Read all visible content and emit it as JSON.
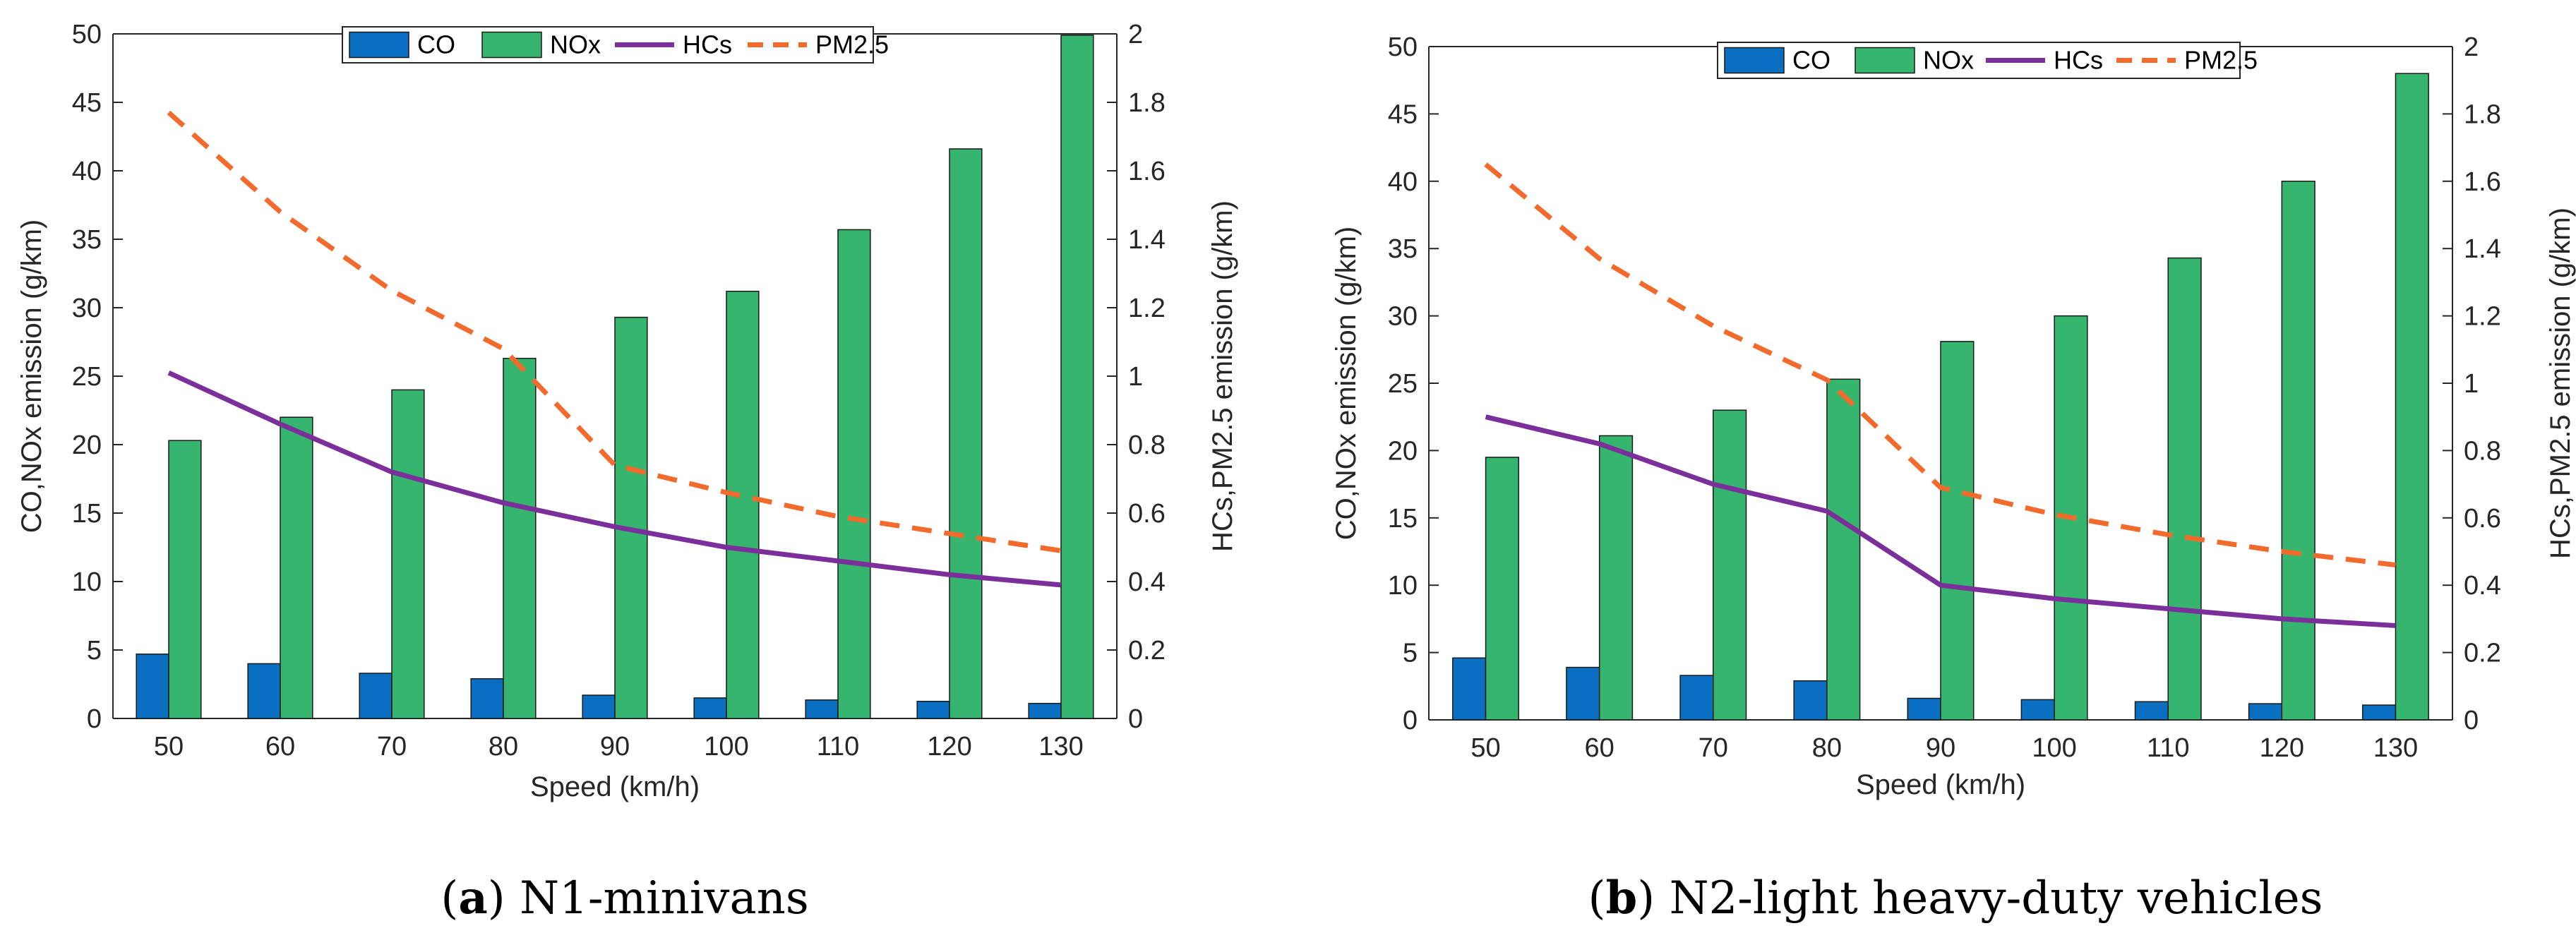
{
  "colors": {
    "CO": "#0b6fc1",
    "NOx": "#35b56e",
    "HCs": "#7b2f9a",
    "PM25": "#f26a2c",
    "axis": "#262626"
  },
  "chart_data": [
    {
      "type": "bar+line",
      "id": "a",
      "categories": [
        50,
        60,
        70,
        80,
        90,
        100,
        110,
        120,
        130
      ],
      "xlabel": "Speed (km/h)",
      "ylabel_left": "CO,NOx emission (g/km)",
      "ylabel_right": "HCs,PM2.5 emission (g/km)",
      "ylim_left": [
        0,
        50
      ],
      "ylim_right": [
        0,
        2
      ],
      "left_ticks": [
        "0",
        "5",
        "10",
        "15",
        "20",
        "25",
        "30",
        "35",
        "40",
        "45",
        "50"
      ],
      "right_ticks": [
        "0",
        "0.2",
        "0.4",
        "0.6",
        "0.8",
        "1",
        "1.2",
        "1.4",
        "1.6",
        "1.8",
        "2"
      ],
      "legend": [
        "CO",
        "NOx",
        "HCs",
        "PM2.5"
      ],
      "legend_position": "top-center",
      "series": [
        {
          "name": "CO",
          "kind": "bar",
          "axis": "left",
          "values": [
            4.7,
            4.0,
            3.3,
            2.9,
            1.7,
            1.5,
            1.35,
            1.25,
            1.1
          ]
        },
        {
          "name": "NOx",
          "kind": "bar",
          "axis": "left",
          "values": [
            20.3,
            22.0,
            24.0,
            26.3,
            29.3,
            31.2,
            35.7,
            41.6,
            49.9
          ]
        },
        {
          "name": "HCs",
          "kind": "line",
          "axis": "right",
          "values": [
            1.01,
            0.86,
            0.72,
            0.63,
            0.56,
            0.5,
            0.46,
            0.42,
            0.39
          ]
        },
        {
          "name": "PM2.5",
          "kind": "dashed-line",
          "axis": "right",
          "values": [
            1.77,
            1.48,
            1.25,
            1.08,
            0.74,
            0.66,
            0.59,
            0.54,
            0.49
          ]
        }
      ],
      "caption": {
        "letter": "a",
        "text": "N1-minivans"
      }
    },
    {
      "type": "bar+line",
      "id": "b",
      "categories": [
        50,
        60,
        70,
        80,
        90,
        100,
        110,
        120,
        130
      ],
      "xlabel": "Speed (km/h)",
      "ylabel_left": "CO,NOx emission (g/km)",
      "ylabel_right": "HCs,PM2.5 emission (g/km)",
      "ylim_left": [
        0,
        50
      ],
      "ylim_right": [
        0,
        2
      ],
      "left_ticks": [
        "0",
        "5",
        "10",
        "15",
        "20",
        "25",
        "30",
        "35",
        "40",
        "45",
        "50"
      ],
      "right_ticks": [
        "0",
        "0.2",
        "0.4",
        "0.6",
        "0.8",
        "1",
        "1.2",
        "1.4",
        "1.6",
        "1.8",
        "2"
      ],
      "legend": [
        "CO",
        "NOx",
        "HCs",
        "PM2.5"
      ],
      "legend_position": "top-center",
      "series": [
        {
          "name": "CO",
          "kind": "bar",
          "axis": "left",
          "values": [
            4.6,
            3.9,
            3.3,
            2.9,
            1.6,
            1.5,
            1.35,
            1.2,
            1.1
          ]
        },
        {
          "name": "NOx",
          "kind": "bar",
          "axis": "left",
          "values": [
            19.5,
            21.1,
            23.0,
            25.3,
            28.1,
            30.0,
            34.3,
            40.0,
            48.0
          ]
        },
        {
          "name": "HCs",
          "kind": "line",
          "axis": "right",
          "values": [
            0.9,
            0.82,
            0.7,
            0.62,
            0.4,
            0.36,
            0.33,
            0.3,
            0.28
          ]
        },
        {
          "name": "PM2.5",
          "kind": "dashed-line",
          "axis": "right",
          "values": [
            1.65,
            1.37,
            1.17,
            1.01,
            0.69,
            0.61,
            0.55,
            0.5,
            0.46
          ]
        }
      ],
      "caption": {
        "letter": "b",
        "text": "N2-light heavy-duty vehicles"
      }
    }
  ]
}
